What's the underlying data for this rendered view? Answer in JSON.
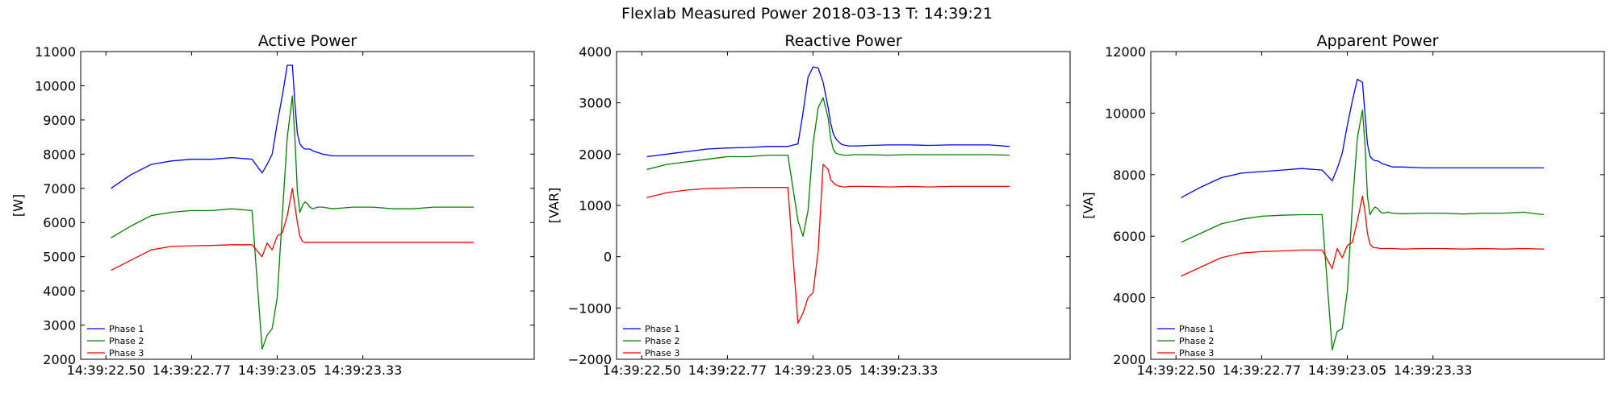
{
  "figure": {
    "suptitle": "Flexlab Measured Power 2018-03-13 T: 14:39:21"
  },
  "chart_data": [
    {
      "type": "line",
      "title": "Active Power",
      "xlabel": "",
      "ylabel": "[W]",
      "xlim": [
        0,
        90
      ],
      "ylim": [
        2000,
        11000
      ],
      "xticks": [
        5,
        22,
        39,
        56
      ],
      "xtick_labels": [
        "14:39:22.50",
        "14:39:22.77",
        "14:39:23.05",
        "14:39:23.33"
      ],
      "yticks": [
        2000,
        3000,
        4000,
        5000,
        6000,
        7000,
        8000,
        9000,
        10000,
        11000
      ],
      "grid": false,
      "legend": "lower-left",
      "x": [
        6,
        10,
        14,
        18,
        22,
        26,
        30,
        34,
        36,
        37,
        38,
        39,
        40,
        41,
        42,
        42.5,
        43,
        43.5,
        44,
        44.5,
        45,
        45.5,
        46,
        47,
        48,
        50,
        54,
        58,
        62,
        66,
        70,
        74,
        78
      ],
      "series": [
        {
          "name": "Phase 1",
          "color": "#0000ff",
          "values": [
            7000,
            7400,
            7700,
            7800,
            7850,
            7850,
            7900,
            7850,
            7450,
            7700,
            8000,
            8900,
            9700,
            10600,
            10600,
            9500,
            8600,
            8300,
            8200,
            8150,
            8150,
            8150,
            8100,
            8050,
            8000,
            7950,
            7950,
            7950,
            7950,
            7950,
            7950,
            7950,
            7950
          ]
        },
        {
          "name": "Phase 2",
          "color": "#008000",
          "values": [
            5550,
            5900,
            6200,
            6300,
            6350,
            6350,
            6400,
            6350,
            2300,
            2700,
            2900,
            3800,
            6200,
            8500,
            9700,
            8500,
            6900,
            6300,
            6500,
            6600,
            6550,
            6450,
            6400,
            6450,
            6450,
            6400,
            6450,
            6450,
            6400,
            6400,
            6450,
            6450,
            6450
          ]
        },
        {
          "name": "Phase 3",
          "color": "#ff0000",
          "values": [
            4600,
            4900,
            5200,
            5300,
            5320,
            5330,
            5350,
            5350,
            5000,
            5400,
            5200,
            5600,
            5700,
            6200,
            7000,
            6500,
            6000,
            5600,
            5450,
            5420,
            5420,
            5420,
            5420,
            5420,
            5420,
            5420,
            5420,
            5420,
            5420,
            5420,
            5420,
            5420,
            5420
          ]
        }
      ]
    },
    {
      "type": "line",
      "title": "Reactive Power",
      "xlabel": "",
      "ylabel": "[VAR]",
      "xlim": [
        0,
        90
      ],
      "ylim": [
        -2000,
        4000
      ],
      "xticks": [
        5,
        22,
        39,
        56
      ],
      "xtick_labels": [
        "14:39:22.50",
        "14:39:22.77",
        "14:39:23.05",
        "14:39:23.33"
      ],
      "yticks": [
        -2000,
        -1000,
        0,
        1000,
        2000,
        3000,
        4000
      ],
      "grid": false,
      "legend": "lower-left",
      "x": [
        6,
        10,
        14,
        18,
        22,
        26,
        30,
        34,
        36,
        37,
        38,
        39,
        40,
        41,
        42,
        42.5,
        43,
        43.5,
        44,
        44.5,
        45,
        45.5,
        46,
        47,
        48,
        50,
        54,
        58,
        62,
        66,
        70,
        74,
        78
      ],
      "series": [
        {
          "name": "Phase 1",
          "color": "#0000ff",
          "values": [
            1950,
            2000,
            2050,
            2100,
            2120,
            2130,
            2150,
            2150,
            2200,
            2800,
            3500,
            3700,
            3680,
            3400,
            2900,
            2600,
            2400,
            2300,
            2250,
            2200,
            2180,
            2170,
            2160,
            2160,
            2160,
            2170,
            2180,
            2180,
            2170,
            2180,
            2180,
            2180,
            2150
          ]
        },
        {
          "name": "Phase 2",
          "color": "#008000",
          "values": [
            1700,
            1800,
            1850,
            1900,
            1950,
            1950,
            1980,
            1980,
            700,
            400,
            900,
            2200,
            2900,
            3100,
            2700,
            2300,
            2100,
            2020,
            2000,
            1990,
            1980,
            1980,
            1980,
            1990,
            1990,
            1990,
            1980,
            1990,
            1990,
            1990,
            1990,
            1990,
            1980
          ]
        },
        {
          "name": "Phase 3",
          "color": "#ff0000",
          "values": [
            1150,
            1250,
            1300,
            1330,
            1340,
            1350,
            1350,
            1350,
            -1300,
            -1100,
            -800,
            -700,
            100,
            1800,
            1700,
            1500,
            1450,
            1400,
            1380,
            1370,
            1360,
            1360,
            1370,
            1370,
            1370,
            1370,
            1360,
            1370,
            1360,
            1370,
            1370,
            1370,
            1370
          ]
        }
      ]
    },
    {
      "type": "line",
      "title": "Apparent Power",
      "xlabel": "",
      "ylabel": "[VA]",
      "xlim": [
        0,
        90
      ],
      "ylim": [
        2000,
        12000
      ],
      "xticks": [
        5,
        22,
        39,
        56
      ],
      "xtick_labels": [
        "14:39:22.50",
        "14:39:22.77",
        "14:39:23.05",
        "14:39:23.33"
      ],
      "yticks": [
        2000,
        4000,
        6000,
        8000,
        10000,
        12000
      ],
      "grid": false,
      "legend": "lower-left",
      "x": [
        6,
        10,
        14,
        18,
        22,
        26,
        30,
        34,
        36,
        37,
        38,
        39,
        40,
        41,
        42,
        42.5,
        43,
        43.5,
        44,
        44.5,
        45,
        45.5,
        46,
        47,
        48,
        50,
        54,
        58,
        62,
        66,
        70,
        74,
        78
      ],
      "series": [
        {
          "name": "Phase 1",
          "color": "#0000ff",
          "values": [
            7250,
            7600,
            7900,
            8050,
            8100,
            8150,
            8200,
            8150,
            7800,
            8200,
            8700,
            9600,
            10400,
            11100,
            11000,
            10000,
            9000,
            8600,
            8500,
            8450,
            8450,
            8400,
            8350,
            8300,
            8250,
            8250,
            8220,
            8220,
            8220,
            8220,
            8220,
            8220,
            8220
          ]
        },
        {
          "name": "Phase 2",
          "color": "#008000",
          "values": [
            5800,
            6100,
            6400,
            6550,
            6650,
            6680,
            6700,
            6700,
            2300,
            2900,
            3000,
            4200,
            7000,
            9200,
            10100,
            9000,
            7300,
            6700,
            6850,
            6950,
            6900,
            6800,
            6750,
            6780,
            6750,
            6730,
            6750,
            6750,
            6720,
            6750,
            6750,
            6780,
            6700
          ]
        },
        {
          "name": "Phase 3",
          "color": "#ff0000",
          "values": [
            4700,
            5000,
            5300,
            5450,
            5500,
            5520,
            5550,
            5550,
            4950,
            5600,
            5300,
            5700,
            5800,
            6500,
            7300,
            6800,
            6100,
            5750,
            5650,
            5620,
            5620,
            5600,
            5600,
            5600,
            5600,
            5580,
            5600,
            5600,
            5580,
            5600,
            5580,
            5600,
            5580
          ]
        }
      ]
    }
  ]
}
